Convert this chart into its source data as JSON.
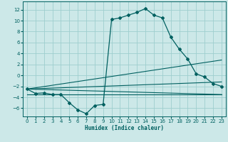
{
  "xlabel": "Humidex (Indice chaleur)",
  "bg_color": "#cce8e8",
  "grid_color": "#9ecece",
  "line_color": "#006060",
  "x_ticks": [
    0,
    1,
    2,
    3,
    4,
    5,
    6,
    7,
    8,
    9,
    10,
    11,
    12,
    13,
    14,
    15,
    16,
    17,
    18,
    19,
    20,
    21,
    22,
    23
  ],
  "y_ticks": [
    -6,
    -4,
    -2,
    0,
    2,
    4,
    6,
    8,
    10,
    12
  ],
  "ylim": [
    -7.5,
    13.5
  ],
  "xlim": [
    -0.5,
    23.5
  ],
  "humidex": [
    -2.5,
    -3.3,
    -3.2,
    -3.5,
    -3.5,
    -5.0,
    -6.3,
    -7.0,
    -5.5,
    -5.3,
    10.2,
    10.5,
    11.0,
    11.5,
    12.2,
    11.0,
    10.5,
    7.0,
    4.8,
    3.0,
    0.3,
    -0.3,
    -1.5,
    -2.0
  ],
  "marker_indices": [
    0,
    1,
    2,
    3,
    4,
    5,
    6,
    7,
    8,
    9,
    10,
    11,
    12,
    13,
    14,
    15,
    16,
    17,
    18,
    19,
    20,
    21,
    22,
    23
  ],
  "trend_lines": [
    {
      "x0": 0,
      "y0": -2.5,
      "x1": 23,
      "y1": 2.8
    },
    {
      "x0": 0,
      "y0": -2.5,
      "x1": 23,
      "y1": -1.2
    },
    {
      "x0": 0,
      "y0": -2.5,
      "x1": 23,
      "y1": -3.5
    }
  ],
  "flat_line_y": -3.5,
  "flat_line_x0": 0,
  "flat_line_x1": 23
}
